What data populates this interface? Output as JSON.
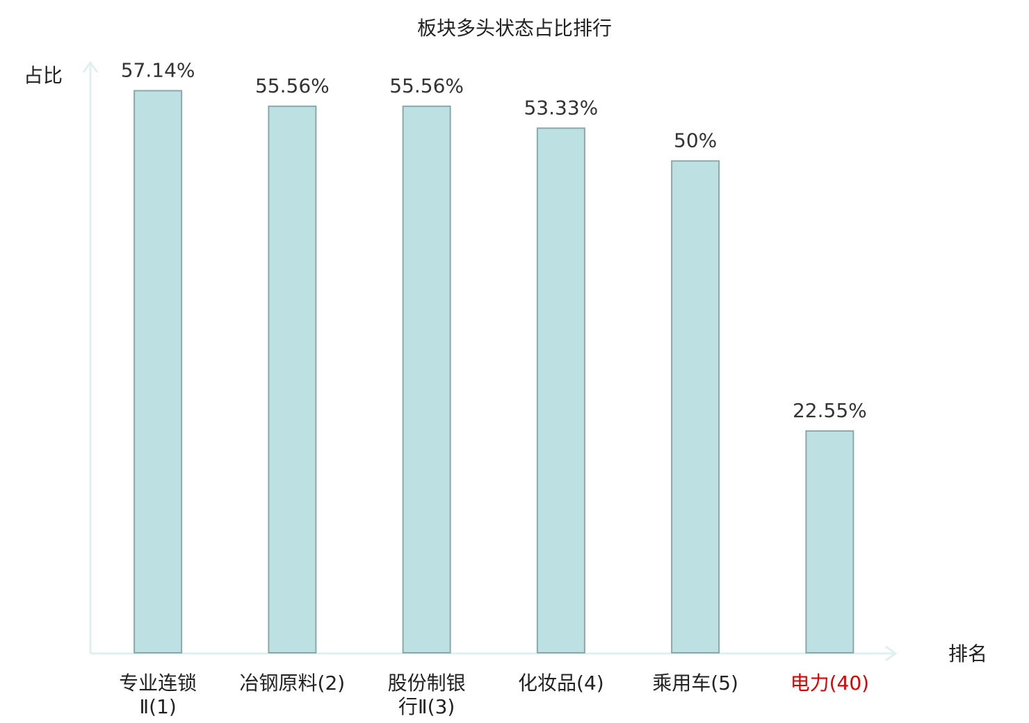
{
  "chart_data": {
    "type": "bar",
    "title": "板块多头状态占比排行",
    "y_label": "占比",
    "x_label": "排名",
    "categories": [
      "专业连锁\nⅡ(1)",
      "冶钢原料(2)",
      "股份制银\n行Ⅱ(3)",
      "化妆品(4)",
      "乘用车(5)",
      "电力(40)"
    ],
    "category_colors": [
      "#222222",
      "#222222",
      "#222222",
      "#222222",
      "#222222",
      "#e00000"
    ],
    "values": [
      57.14,
      55.56,
      55.56,
      53.33,
      50,
      22.55
    ],
    "value_labels": [
      "57.14%",
      "55.56%",
      "55.56%",
      "53.33%",
      "50%",
      "22.55%"
    ],
    "color": "#bde0e3",
    "edge_color": "#8aa8aa",
    "ylim": [
      0,
      60
    ]
  }
}
